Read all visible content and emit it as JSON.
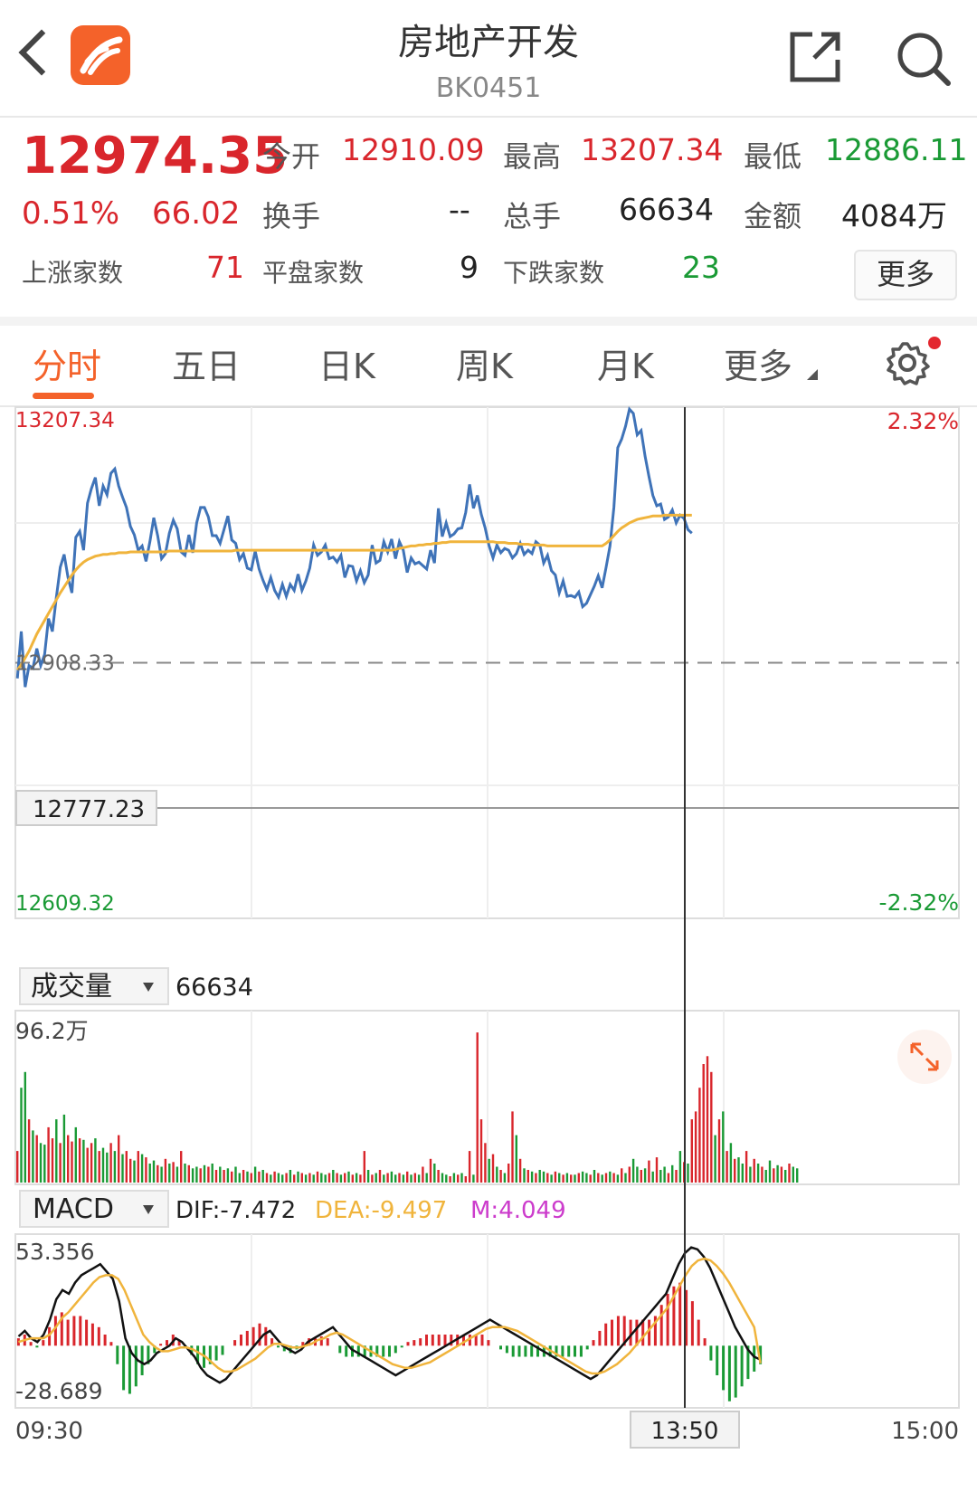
{
  "header": {
    "title": "房地产开发",
    "code": "BK0451"
  },
  "quote": {
    "price": "12974.35",
    "change_pct": "0.51%",
    "change": "66.02",
    "open_label": "今开",
    "open": "12910.09",
    "high_label": "最高",
    "high": "13207.34",
    "low_label": "最低",
    "low": "12886.11",
    "turnover_label": "换手",
    "turnover": "--",
    "volume_label": "总手",
    "volume": "66634",
    "amount_label": "金额",
    "amount": "4084万",
    "up_label": "上涨家数",
    "up": "71",
    "flat_label": "平盘家数",
    "flat": "9",
    "down_label": "下跌家数",
    "down": "23",
    "more_label": "更多"
  },
  "tabs": [
    "分时",
    "五日",
    "日K",
    "周K",
    "月K",
    "更多"
  ],
  "colors": {
    "accent": "#f4622a",
    "up": "#d9262c",
    "down": "#1a9a35",
    "price_line": "#3f73b8",
    "avg_line": "#f0b43c",
    "dea": "#f0b43c",
    "m": "#cc3ccc"
  },
  "chart_data": [
    {
      "type": "line",
      "name": "intraday",
      "y_labels_left": [
        "13207.34",
        "12908.33",
        "12609.32"
      ],
      "y_labels_right": [
        "2.32%",
        "-2.32%"
      ],
      "crosshair_value": "12777.23",
      "ylim": [
        12609.32,
        13207.34
      ],
      "prev_close": 12908.33,
      "x_labels": [
        "09:30",
        "13:50",
        "15:00"
      ],
      "series": [
        {
          "points": [
            12890,
            12945,
            12880,
            12905,
            12902,
            12925,
            12905,
            12918,
            12960,
            12945,
            12985,
            13020,
            13035,
            13008,
            12990,
            13055,
            13062,
            13040,
            13095,
            13112,
            13125,
            13092,
            13115,
            13105,
            13130,
            13135,
            13115,
            13102,
            13090,
            13068,
            13058,
            13040,
            13045,
            13027,
            13050,
            13078,
            13057,
            13030,
            13036,
            13060,
            13075,
            13065,
            13038,
            13034,
            13058,
            13037,
            13072,
            13090,
            13090,
            13079,
            13057,
            13057,
            13048,
            13064,
            13080,
            13052,
            13048,
            13029,
            13036,
            13019,
            13017,
            13039,
            13018,
            13005,
            12994,
            13008,
            12993,
            12985,
            13000,
            12986,
            13000,
            12993,
            13012,
            12993,
            13004,
            13019,
            13046,
            13034,
            13038,
            13046,
            13030,
            13032,
            13026,
            13034,
            13008,
            13022,
            13021,
            13004,
            13016,
            13002,
            13011,
            13046,
            13025,
            13028,
            13050,
            13038,
            13053,
            13030,
            13050,
            13040,
            13014,
            13031,
            13024,
            13026,
            13022,
            13018,
            13040,
            13025,
            13089,
            13056,
            13072,
            13056,
            13059,
            13065,
            13066,
            13084,
            13117,
            13089,
            13104,
            13082,
            13066,
            13045,
            13031,
            13046,
            13037,
            13042,
            13040,
            13031,
            13036,
            13048,
            13035,
            13040,
            13036,
            13050,
            13046,
            13025,
            13034,
            13016,
            13011,
            12990,
            13004,
            12986,
            12987,
            12985,
            12991,
            12974,
            12978,
            12988,
            12998,
            13010,
            12996,
            13020,
            13045,
            13090,
            13160,
            13170,
            13185,
            13205,
            13200,
            13175,
            13180,
            13150,
            13126,
            13104,
            13092,
            13094,
            13076,
            13079,
            13087,
            13072,
            13081,
            13077,
            13064,
            13060
          ]
        },
        {
          "points": [
            12900,
            12906,
            12914,
            12922,
            12932,
            12942,
            12950,
            12958,
            12966,
            12974,
            12982,
            12990,
            12997,
            13004,
            13011,
            13017,
            13022,
            13026,
            13029,
            13031,
            13033,
            13034,
            13035,
            13035,
            13036,
            13036,
            13037,
            13037,
            13037,
            13038,
            13038,
            13038,
            13038,
            13038,
            13038,
            13038,
            13038,
            13038,
            13038,
            13039,
            13039,
            13039,
            13039,
            13039,
            13039,
            13039,
            13039,
            13039,
            13039,
            13039,
            13039,
            13039,
            13039,
            13039,
            13039,
            13039,
            13040,
            13040,
            13040,
            13040,
            13040,
            13040,
            13040,
            13040,
            13040,
            13040,
            13040,
            13040,
            13040,
            13040,
            13040,
            13040,
            13040,
            13040,
            13040,
            13040,
            13040,
            13040,
            13040,
            13040,
            13040,
            13040,
            13040,
            13040,
            13040,
            13040,
            13040,
            13040,
            13040,
            13040,
            13040,
            13040,
            13040,
            13040,
            13040,
            13040,
            13040,
            13041,
            13042,
            13043,
            13044,
            13045,
            13045,
            13046,
            13046,
            13047,
            13047,
            13048,
            13048,
            13049,
            13049,
            13050,
            13050,
            13050,
            13050,
            13050,
            13050,
            13050,
            13050,
            13050,
            13050,
            13050,
            13050,
            13049,
            13049,
            13049,
            13048,
            13048,
            13048,
            13047,
            13047,
            13047,
            13046,
            13046,
            13046,
            13046,
            13045,
            13045,
            13045,
            13045,
            13045,
            13045,
            13045,
            13045,
            13045,
            13045,
            13045,
            13045,
            13045,
            13045,
            13045,
            13048,
            13052,
            13057,
            13062,
            13066,
            13069,
            13072,
            13074,
            13076,
            13077,
            13078,
            13079,
            13080,
            13080,
            13080,
            13081,
            13081,
            13081,
            13081,
            13081,
            13081,
            13081,
            13081
          ]
        }
      ]
    },
    {
      "type": "bar",
      "name": "volume",
      "label": "成交量",
      "total": "66634",
      "max_label": "96.2万",
      "ylim": [
        0,
        96.2
      ],
      "values": [
        20,
        60,
        70,
        40,
        33,
        30,
        25,
        24,
        35,
        28,
        40,
        25,
        43,
        30,
        26,
        35,
        28,
        27,
        22,
        25,
        28,
        20,
        22,
        19,
        25,
        20,
        30,
        18,
        20,
        15,
        14,
        20,
        18,
        16,
        12,
        14,
        11,
        10,
        15,
        12,
        13,
        10,
        20,
        12,
        11,
        9,
        10,
        9,
        11,
        10,
        12,
        8,
        10,
        8,
        9,
        7,
        10,
        6,
        8,
        7,
        6,
        10,
        7,
        8,
        6,
        5,
        7,
        6,
        5,
        6,
        8,
        5,
        7,
        6,
        5,
        6,
        5,
        7,
        6,
        5,
        6,
        8,
        6,
        5,
        6,
        7,
        5,
        6,
        5,
        20,
        8,
        5,
        6,
        8,
        5,
        6,
        7,
        5,
        6,
        5,
        7,
        5,
        6,
        5,
        10,
        6,
        15,
        12,
        8,
        6,
        5,
        4,
        6,
        5,
        6,
        4,
        20,
        5,
        95,
        40,
        25,
        15,
        18,
        10,
        8,
        6,
        12,
        45,
        30,
        15,
        9,
        8,
        7,
        6,
        8,
        7,
        6,
        5,
        7,
        6,
        5,
        6,
        5,
        5,
        6,
        7,
        6,
        5,
        8,
        6,
        5,
        6,
        7,
        6,
        5,
        9,
        6,
        10,
        15,
        10,
        8,
        9,
        14,
        7,
        16,
        8,
        10,
        6,
        11,
        8,
        20,
        13,
        12,
        40,
        45,
        60,
        75,
        80,
        70,
        30,
        40,
        45,
        20,
        25,
        15,
        16,
        12,
        20,
        10,
        15,
        12,
        10,
        8,
        14,
        9,
        11,
        10,
        8,
        12,
        10,
        9
      ],
      "up": [
        1,
        0,
        0,
        1,
        0,
        1,
        0,
        0,
        1,
        1,
        0,
        1,
        0,
        1,
        1,
        0,
        1,
        0,
        1,
        1,
        0,
        1,
        0,
        0,
        1,
        0,
        1,
        0,
        1,
        1,
        0,
        1,
        0,
        1,
        0,
        0,
        1,
        0,
        1,
        0,
        1,
        0,
        1,
        0,
        1,
        0,
        0,
        1,
        0,
        1,
        0,
        1,
        0,
        1,
        0,
        1,
        0,
        0,
        1,
        0,
        1,
        0,
        1,
        0,
        1,
        0,
        1,
        0,
        0,
        1,
        0,
        1,
        0,
        1,
        0,
        1,
        0,
        1,
        0,
        0,
        1,
        0,
        1,
        0,
        1,
        0,
        1,
        0,
        1,
        1,
        0,
        1,
        0,
        1,
        0,
        1,
        0,
        0,
        1,
        0,
        1,
        0,
        1,
        0,
        1,
        0,
        1,
        0,
        1,
        0,
        0,
        1,
        0,
        1,
        0,
        1,
        1,
        0,
        1,
        1,
        1,
        0,
        1,
        0,
        1,
        0,
        1,
        1,
        0,
        1,
        0,
        1,
        0,
        1,
        0,
        0,
        1,
        0,
        1,
        0,
        1,
        0,
        1,
        0,
        1,
        0,
        0,
        1,
        0,
        1,
        0,
        1,
        0,
        1,
        0,
        1,
        0,
        1,
        0,
        0,
        1,
        0,
        1,
        0,
        1,
        0,
        0,
        1,
        0,
        1,
        0,
        1,
        0,
        1,
        1,
        1,
        1,
        1,
        1,
        0,
        1,
        0,
        1,
        0,
        1,
        0,
        0,
        1,
        0,
        1,
        0,
        1,
        0,
        0,
        1,
        0,
        1,
        0,
        1,
        0,
        0
      ]
    },
    {
      "type": "line",
      "name": "MACD",
      "label": "MACD",
      "dif_label": "DIF:-7.472",
      "dea_label": "DEA:-9.497",
      "m_label": "M:4.049",
      "max_label": "53.356",
      "min_label": "-28.689",
      "ylim": [
        -28.689,
        53.356
      ],
      "series": [
        {
          "name": "DIF",
          "points": [
            5,
            8,
            4,
            2,
            6,
            14,
            25,
            30,
            28,
            34,
            38,
            40,
            42,
            44,
            40,
            36,
            24,
            4,
            -4,
            -8,
            -10,
            -8,
            -4,
            -2,
            0,
            4,
            2,
            -2,
            -6,
            -12,
            -16,
            -18,
            -20,
            -18,
            -14,
            -10,
            -6,
            -2,
            2,
            6,
            8,
            4,
            0,
            -2,
            -4,
            -2,
            2,
            4,
            6,
            8,
            10,
            6,
            2,
            -2,
            -4,
            -6,
            -8,
            -10,
            -12,
            -14,
            -16,
            -14,
            -12,
            -10,
            -8,
            -6,
            -4,
            -2,
            0,
            2,
            4,
            6,
            8,
            10,
            12,
            14,
            12,
            10,
            8,
            6,
            4,
            2,
            0,
            -2,
            -4,
            -6,
            -8,
            -10,
            -12,
            -14,
            -16,
            -18,
            -16,
            -12,
            -8,
            -4,
            0,
            4,
            8,
            12,
            16,
            20,
            24,
            28,
            36,
            44,
            50,
            53,
            52,
            48,
            42,
            34,
            26,
            18,
            10,
            4,
            -2,
            -6,
            -7.5
          ]
        },
        {
          "name": "DEA",
          "points": [
            2,
            3,
            4,
            4,
            4,
            6,
            10,
            15,
            18,
            22,
            26,
            30,
            34,
            37,
            38,
            38,
            36,
            30,
            22,
            14,
            6,
            2,
            -1,
            -3,
            -3,
            -2,
            -1,
            -1,
            -2,
            -4,
            -6,
            -9,
            -12,
            -14,
            -14,
            -13,
            -11,
            -9,
            -7,
            -4,
            -1,
            1,
            1,
            0,
            -1,
            -1,
            0,
            1,
            3,
            4,
            6,
            7,
            6,
            4,
            2,
            0,
            -2,
            -4,
            -6,
            -8,
            -10,
            -11,
            -12,
            -12,
            -11,
            -10,
            -9,
            -7,
            -5,
            -3,
            -1,
            1,
            3,
            5,
            7,
            9,
            10,
            10,
            10,
            9,
            8,
            6,
            4,
            2,
            0,
            -2,
            -4,
            -6,
            -8,
            -10,
            -12,
            -14,
            -15,
            -15,
            -14,
            -12,
            -10,
            -7,
            -4,
            0,
            4,
            8,
            12,
            16,
            20,
            26,
            32,
            38,
            43,
            46,
            47,
            46,
            43,
            39,
            34,
            28,
            22,
            16,
            10,
            -9.5
          ]
        }
      ],
      "bars": [
        4,
        6,
        2,
        -1,
        3,
        10,
        16,
        18,
        14,
        16,
        16,
        14,
        12,
        10,
        6,
        2,
        -10,
        -24,
        -26,
        -22,
        -16,
        -10,
        -4,
        1,
        3,
        6,
        3,
        -1,
        -5,
        -10,
        -12,
        -10,
        -8,
        -5,
        0,
        3,
        6,
        8,
        10,
        12,
        10,
        4,
        -1,
        -3,
        -4,
        -2,
        2,
        4,
        4,
        5,
        4,
        0,
        -4,
        -6,
        -6,
        -6,
        -6,
        -6,
        -6,
        -6,
        -6,
        -4,
        -1,
        2,
        3,
        4,
        6,
        6,
        6,
        6,
        6,
        6,
        6,
        6,
        6,
        6,
        3,
        0,
        -2,
        -4,
        -6,
        -6,
        -6,
        -6,
        -6,
        -6,
        -6,
        -6,
        -6,
        -6,
        -6,
        -6,
        -2,
        3,
        8,
        12,
        14,
        16,
        16,
        14,
        14,
        14,
        14,
        16,
        22,
        28,
        32,
        34,
        30,
        24,
        14,
        4,
        -8,
        -16,
        -24,
        -30,
        -28,
        -22,
        -18,
        -14,
        -10
      ]
    }
  ]
}
